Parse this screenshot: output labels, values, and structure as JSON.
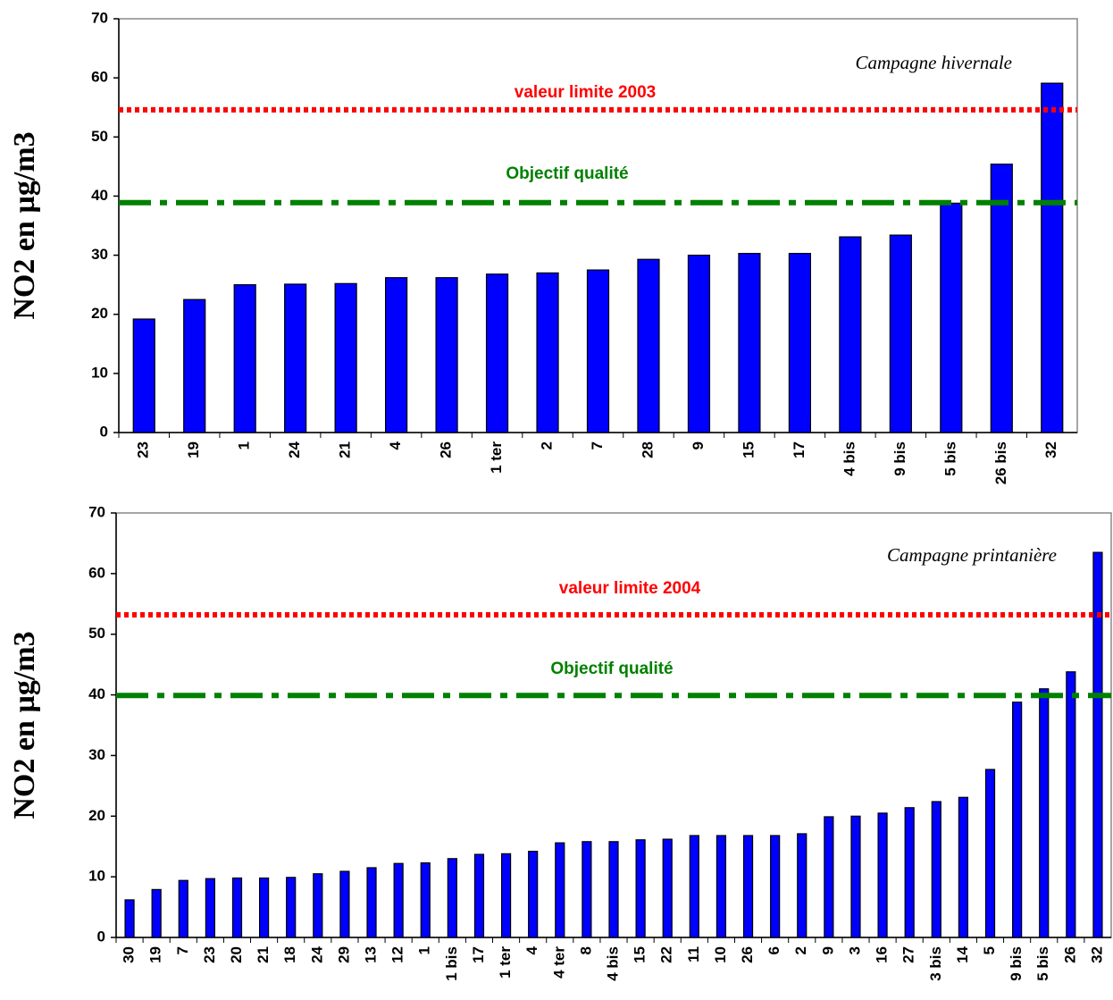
{
  "chart_data": [
    {
      "type": "bar",
      "annotation": "Campagne hivernale",
      "ylabel": "NO2 en µg/m3",
      "categories": [
        "23",
        "19",
        "1",
        "24",
        "21",
        "4",
        "26",
        "1 ter",
        "2",
        "7",
        "28",
        "9",
        "15",
        "17",
        "4 bis",
        "9 bis",
        "5 bis",
        "26 bis",
        "32"
      ],
      "values": [
        19.2,
        22.5,
        25,
        25.1,
        25.2,
        26.2,
        26.2,
        26.8,
        27,
        27.5,
        29.3,
        30,
        30.3,
        30.3,
        33.1,
        33.4,
        38.8,
        45.4,
        59.1
      ],
      "color": "#0000ff",
      "ylim": [
        0,
        70
      ],
      "yticks": [
        0,
        10,
        20,
        30,
        40,
        50,
        60,
        70
      ],
      "lines": [
        {
          "label": "valeur limite 2003",
          "value": 54.6,
          "color": "#ff0000",
          "style": "dotted"
        },
        {
          "label": "Objectif qualité",
          "value": 38.9,
          "color": "#008000",
          "style": "dashdot"
        }
      ]
    },
    {
      "type": "bar",
      "annotation": "Campagne printanière",
      "ylabel": "NO2 en µg/m3",
      "categories": [
        "30",
        "19",
        "7",
        "23",
        "20",
        "21",
        "18",
        "24",
        "29",
        "13",
        "12",
        "1",
        "1 bis",
        "17",
        "1 ter",
        "4",
        "4 ter",
        "8",
        "4 bis",
        "15",
        "22",
        "11",
        "10",
        "26",
        "6",
        "2",
        "9",
        "3",
        "16",
        "27",
        "3 bis",
        "14",
        "5",
        "9 bis",
        "5 bis",
        "26",
        "32"
      ],
      "values": [
        6.2,
        7.9,
        9.4,
        9.7,
        9.8,
        9.8,
        9.9,
        10.5,
        10.9,
        11.5,
        12.2,
        12.3,
        13,
        13.7,
        13.8,
        14.2,
        15.6,
        15.8,
        15.8,
        16.1,
        16.2,
        16.8,
        16.8,
        16.8,
        16.8,
        17.1,
        19.9,
        20,
        20.5,
        21.4,
        22.4,
        23.1,
        27.7,
        38.8,
        41,
        43.8,
        63.5
      ],
      "color": "#0000ff",
      "ylim": [
        0,
        70
      ],
      "yticks": [
        0,
        10,
        20,
        30,
        40,
        50,
        60,
        70
      ],
      "lines": [
        {
          "label": "valeur limite 2004",
          "value": 53.2,
          "color": "#ff0000",
          "style": "dotted"
        },
        {
          "label": "Objectif qualité",
          "value": 39.9,
          "color": "#008000",
          "style": "dashdot"
        }
      ]
    }
  ]
}
